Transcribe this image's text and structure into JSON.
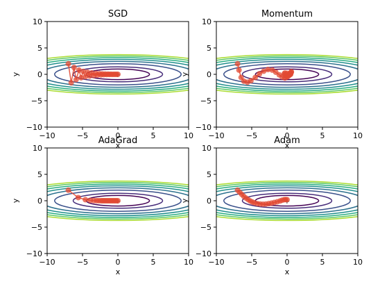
{
  "chart_data": [
    {
      "type": "line",
      "title": "SGD",
      "xlabel": "x",
      "ylabel": "y",
      "xlim": [
        -10,
        10
      ],
      "ylim": [
        -10,
        10
      ],
      "xticks": [
        -10,
        -5,
        0,
        5,
        10
      ],
      "yticks": [
        -10,
        -5,
        0,
        5,
        10
      ],
      "xtick_labels": [
        "−10",
        "−5",
        "0",
        "5",
        "10"
      ],
      "ytick_labels": [
        "−10",
        "−5",
        "0",
        "5",
        "10"
      ],
      "contour_levels": [
        1,
        2,
        4,
        6,
        8,
        10,
        12,
        14
      ],
      "series": [
        {
          "x": [
            -7.0,
            -6.6,
            -6.2,
            -5.9,
            -5.5,
            -5.2,
            -4.9,
            -4.6,
            -4.3,
            -4.0,
            -3.7,
            -3.4,
            -3.1,
            -2.9,
            -2.6,
            -2.4,
            -2.2,
            -2.0,
            -1.8,
            -1.6,
            -1.4,
            -1.2,
            -1.0,
            -0.8,
            -0.6,
            -0.4,
            -0.2,
            0.0
          ],
          "y": [
            2.0,
            -1.6,
            1.3,
            -1.0,
            0.8,
            -0.65,
            0.55,
            -0.45,
            0.4,
            -0.32,
            0.27,
            -0.22,
            0.18,
            -0.15,
            0.12,
            -0.1,
            0.08,
            -0.06,
            0.05,
            -0.04,
            0.03,
            -0.02,
            0.015,
            -0.01,
            0.008,
            -0.005,
            0.003,
            0.0
          ]
        }
      ]
    },
    {
      "type": "line",
      "title": "Momentum",
      "xlabel": "x",
      "ylabel": "y",
      "xlim": [
        -10,
        10
      ],
      "ylim": [
        -10,
        10
      ],
      "xticks": [
        -10,
        -5,
        0,
        5,
        10
      ],
      "yticks": [
        -10,
        -5,
        0,
        5,
        10
      ],
      "xtick_labels": [
        "−10",
        "−5",
        "0",
        "5",
        "10"
      ],
      "ytick_labels": [
        "−10",
        "−5",
        "0",
        "5",
        "10"
      ],
      "contour_levels": [
        1,
        2,
        4,
        6,
        8,
        10,
        12,
        14
      ],
      "series": [
        {
          "x": [
            -7.0,
            -6.8,
            -6.5,
            -6.1,
            -5.6,
            -5.1,
            -4.5,
            -3.9,
            -3.3,
            -2.7,
            -2.1,
            -1.6,
            -1.1,
            -0.7,
            -0.3,
            0.0,
            0.3,
            0.5,
            0.6,
            0.6,
            0.5,
            0.3,
            0.1,
            -0.1,
            -0.3,
            -0.4,
            -0.3,
            0.0,
            0.3,
            0.5,
            0.4
          ],
          "y": [
            2.0,
            0.8,
            -0.6,
            -1.3,
            -1.5,
            -1.2,
            -0.6,
            0.1,
            0.6,
            0.9,
            0.8,
            0.4,
            -0.1,
            -0.5,
            -0.7,
            -0.5,
            -0.1,
            0.3,
            0.5,
            0.4,
            0.1,
            -0.2,
            -0.4,
            -0.3,
            -0.1,
            0.1,
            0.25,
            0.2,
            0.05,
            0.0,
            0.1
          ]
        }
      ]
    },
    {
      "type": "line",
      "title": "AdaGrad",
      "xlabel": "x",
      "ylabel": "y",
      "xlim": [
        -10,
        10
      ],
      "ylim": [
        -10,
        10
      ],
      "xticks": [
        -10,
        -5,
        0,
        5,
        10
      ],
      "yticks": [
        -10,
        -5,
        0,
        5,
        10
      ],
      "xtick_labels": [
        "−10",
        "−5",
        "0",
        "5",
        "10"
      ],
      "ytick_labels": [
        "−10",
        "−5",
        "0",
        "5",
        "10"
      ],
      "contour_levels": [
        1,
        2,
        4,
        6,
        8,
        10,
        12,
        14
      ],
      "series": [
        {
          "x": [
            -7.0,
            -5.6,
            -4.6,
            -3.9,
            -3.4,
            -3.0,
            -2.7,
            -2.4,
            -2.2,
            -2.0,
            -1.8,
            -1.6,
            -1.4,
            -1.2,
            -1.0,
            -0.8,
            -0.6,
            -0.4,
            -0.2,
            0.0
          ],
          "y": [
            2.0,
            0.6,
            0.2,
            0.07,
            0.03,
            0.01,
            0.005,
            0.002,
            0.001,
            0.0,
            0.0,
            0.0,
            0.0,
            0.0,
            0.0,
            0.0,
            0.0,
            0.0,
            0.0,
            0.0
          ]
        }
      ]
    },
    {
      "type": "line",
      "title": "Adam",
      "xlabel": "x",
      "ylabel": "y",
      "xlim": [
        -10,
        10
      ],
      "ylim": [
        -10,
        10
      ],
      "xticks": [
        -10,
        -5,
        0,
        5,
        10
      ],
      "yticks": [
        -10,
        -5,
        0,
        5,
        10
      ],
      "xtick_labels": [
        "−10",
        "−5",
        "0",
        "5",
        "10"
      ],
      "ytick_labels": [
        "−10",
        "−5",
        "0",
        "5",
        "10"
      ],
      "contour_levels": [
        1,
        2,
        4,
        6,
        8,
        10,
        12,
        14
      ],
      "series": [
        {
          "x": [
            -7.0,
            -6.7,
            -6.4,
            -6.1,
            -5.8,
            -5.5,
            -5.2,
            -4.9,
            -4.6,
            -4.2,
            -3.8,
            -3.4,
            -3.0,
            -2.6,
            -2.2,
            -1.8,
            -1.4,
            -1.0,
            -0.7,
            -0.4,
            -0.2,
            0.0
          ],
          "y": [
            2.0,
            1.6,
            1.2,
            0.8,
            0.5,
            0.2,
            -0.05,
            -0.25,
            -0.4,
            -0.55,
            -0.62,
            -0.65,
            -0.62,
            -0.55,
            -0.45,
            -0.33,
            -0.2,
            -0.05,
            0.1,
            0.2,
            0.22,
            0.2
          ]
        }
      ]
    }
  ]
}
